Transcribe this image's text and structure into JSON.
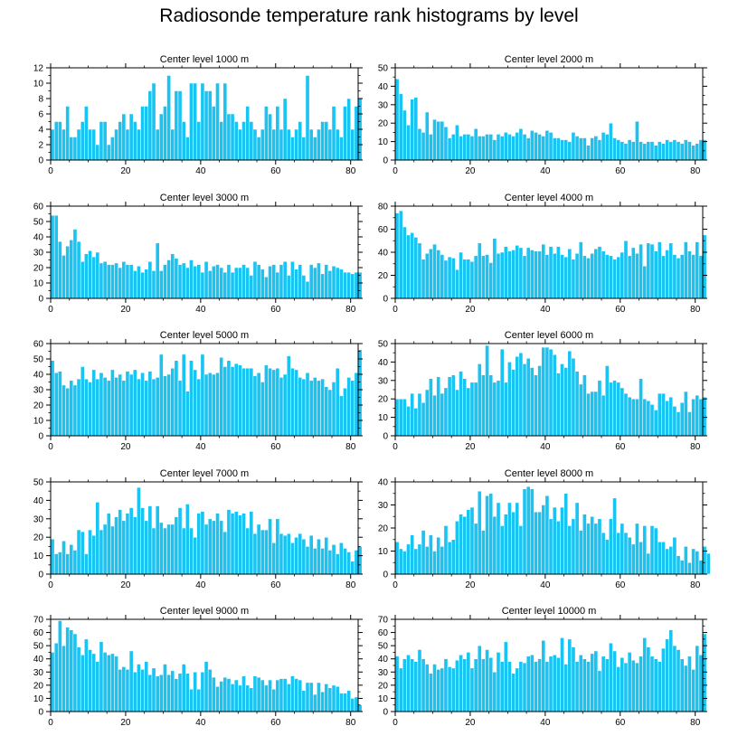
{
  "chart_data": {
    "type": "bar",
    "title": "Radiosonde temperature rank histograms by level",
    "bar_color": "#19c4f2",
    "bar_edge_color": "#ffffff",
    "x_ticks": [
      0,
      20,
      40,
      60,
      80
    ],
    "xlim": [
      0,
      82
    ],
    "panels": [
      {
        "title": "Center level 1000 m",
        "ylim": [
          0,
          12
        ],
        "y_ticks": [
          0,
          2,
          4,
          6,
          8,
          10,
          12
        ],
        "values": [
          4,
          5,
          5,
          4,
          7,
          3,
          3,
          4,
          5,
          7,
          4,
          4,
          2,
          5,
          5,
          2,
          3,
          4,
          5,
          6,
          4,
          6,
          5,
          4,
          7,
          7,
          9,
          10,
          4,
          6,
          7,
          11,
          4,
          9,
          9,
          5,
          3,
          10,
          10,
          5,
          10,
          9,
          9,
          7,
          10,
          5,
          10,
          6,
          6,
          5,
          4,
          5,
          7,
          5,
          4,
          3,
          4,
          7,
          6,
          4,
          7,
          4,
          8,
          4,
          3,
          4,
          5,
          3,
          11,
          4,
          3,
          4,
          5,
          5,
          4,
          7,
          4,
          3,
          7,
          8,
          4,
          7,
          8
        ]
      },
      {
        "title": "Center level 2000 m",
        "ylim": [
          0,
          50
        ],
        "y_ticks": [
          0,
          10,
          20,
          30,
          40,
          50
        ],
        "values": [
          44,
          36,
          27,
          19,
          33,
          34,
          17,
          15,
          26,
          14,
          22,
          21,
          21,
          18,
          12,
          14,
          19,
          13,
          14,
          14,
          13,
          17,
          13,
          13,
          14,
          14,
          11,
          14,
          13,
          15,
          14,
          13,
          15,
          17,
          14,
          12,
          16,
          15,
          14,
          13,
          16,
          15,
          12,
          12,
          11,
          11,
          10,
          15,
          13,
          12,
          12,
          8,
          12,
          13,
          11,
          15,
          14,
          20,
          12,
          11,
          10,
          9,
          11,
          10,
          21,
          10,
          9,
          10,
          10,
          8,
          10,
          9,
          11,
          10,
          11,
          10,
          9,
          11,
          10,
          8,
          9,
          11,
          11
        ]
      },
      {
        "title": "Center level 3000 m",
        "ylim": [
          0,
          60
        ],
        "y_ticks": [
          0,
          10,
          20,
          30,
          40,
          50,
          60
        ],
        "values": [
          54,
          54,
          37,
          28,
          34,
          38,
          45,
          37,
          24,
          29,
          31,
          27,
          30,
          23,
          24,
          22,
          22,
          23,
          20,
          24,
          22,
          22,
          18,
          21,
          17,
          19,
          24,
          18,
          36,
          18,
          22,
          25,
          29,
          26,
          22,
          23,
          20,
          25,
          21,
          22,
          17,
          24,
          18,
          21,
          22,
          20,
          17,
          22,
          17,
          20,
          20,
          22,
          20,
          15,
          24,
          22,
          19,
          14,
          21,
          22,
          17,
          22,
          24,
          15,
          24,
          19,
          22,
          15,
          11,
          22,
          20,
          23,
          16,
          22,
          18,
          21,
          20,
          19,
          17,
          17,
          16,
          17,
          17
        ]
      },
      {
        "title": "Center level 4000 m",
        "ylim": [
          0,
          80
        ],
        "y_ticks": [
          0,
          20,
          40,
          60,
          80
        ],
        "values": [
          74,
          76,
          62,
          55,
          57,
          53,
          48,
          34,
          39,
          43,
          47,
          42,
          38,
          33,
          36,
          35,
          25,
          40,
          34,
          34,
          32,
          37,
          48,
          37,
          38,
          31,
          52,
          39,
          40,
          45,
          41,
          42,
          46,
          44,
          37,
          44,
          42,
          41,
          41,
          47,
          38,
          45,
          39,
          45,
          38,
          36,
          43,
          34,
          39,
          49,
          37,
          35,
          39,
          43,
          45,
          41,
          38,
          37,
          34,
          36,
          40,
          50,
          37,
          44,
          39,
          47,
          28,
          48,
          47,
          41,
          49,
          37,
          42,
          48,
          38,
          35,
          38,
          49,
          41,
          38,
          49,
          37,
          55
        ]
      },
      {
        "title": "Center level 5000 m",
        "ylim": [
          0,
          60
        ],
        "y_ticks": [
          0,
          10,
          20,
          30,
          40,
          50,
          60
        ],
        "values": [
          49,
          41,
          42,
          33,
          31,
          36,
          33,
          37,
          45,
          37,
          35,
          43,
          37,
          41,
          38,
          36,
          43,
          38,
          40,
          36,
          42,
          40,
          43,
          37,
          41,
          36,
          42,
          37,
          38,
          53,
          39,
          40,
          44,
          49,
          36,
          53,
          29,
          49,
          43,
          37,
          53,
          40,
          41,
          40,
          41,
          51,
          45,
          49,
          45,
          47,
          46,
          44,
          44,
          44,
          39,
          41,
          35,
          46,
          44,
          43,
          44,
          38,
          40,
          52,
          44,
          43,
          38,
          37,
          41,
          36,
          38,
          36,
          37,
          32,
          30,
          35,
          44,
          26,
          31,
          38,
          36,
          41,
          56
        ]
      },
      {
        "title": "Center level 6000 m",
        "ylim": [
          0,
          50
        ],
        "y_ticks": [
          0,
          10,
          20,
          30,
          40,
          50
        ],
        "values": [
          20,
          20,
          20,
          16,
          23,
          15,
          23,
          18,
          25,
          31,
          22,
          32,
          23,
          26,
          32,
          33,
          25,
          35,
          31,
          26,
          29,
          29,
          39,
          33,
          49,
          33,
          29,
          30,
          47,
          29,
          40,
          36,
          43,
          45,
          39,
          42,
          37,
          33,
          38,
          48,
          48,
          47,
          44,
          34,
          39,
          37,
          46,
          42,
          35,
          28,
          33,
          23,
          24,
          24,
          30,
          22,
          38,
          29,
          30,
          29,
          26,
          23,
          21,
          20,
          20,
          31,
          20,
          19,
          17,
          14,
          23,
          23,
          19,
          21,
          16,
          13,
          18,
          24,
          13,
          20,
          22,
          20,
          21
        ]
      },
      {
        "title": "Center level 7000 m",
        "ylim": [
          0,
          50
        ],
        "y_ticks": [
          0,
          10,
          20,
          30,
          40,
          50
        ],
        "values": [
          19,
          11,
          12,
          18,
          11,
          16,
          13,
          24,
          23,
          11,
          24,
          21,
          39,
          24,
          27,
          33,
          26,
          31,
          35,
          29,
          33,
          36,
          31,
          47,
          36,
          29,
          37,
          25,
          37,
          28,
          25,
          27,
          27,
          31,
          36,
          25,
          38,
          25,
          20,
          33,
          34,
          27,
          30,
          29,
          33,
          29,
          23,
          35,
          33,
          34,
          32,
          33,
          25,
          34,
          22,
          27,
          24,
          24,
          30,
          17,
          30,
          22,
          21,
          22,
          17,
          20,
          22,
          19,
          15,
          21,
          14,
          19,
          14,
          20,
          13,
          16,
          11,
          17,
          14,
          12,
          7,
          13,
          15
        ]
      },
      {
        "title": "Center level 8000 m",
        "ylim": [
          0,
          40
        ],
        "y_ticks": [
          0,
          10,
          20,
          30,
          40
        ],
        "values": [
          14,
          11,
          10,
          13,
          17,
          11,
          13,
          19,
          12,
          17,
          10,
          16,
          12,
          21,
          14,
          15,
          23,
          26,
          25,
          28,
          29,
          22,
          36,
          19,
          34,
          35,
          25,
          31,
          21,
          26,
          31,
          27,
          31,
          21,
          37,
          38,
          37,
          27,
          27,
          30,
          34,
          24,
          29,
          23,
          29,
          35,
          21,
          24,
          31,
          19,
          26,
          22,
          25,
          22,
          24,
          18,
          15,
          24,
          33,
          18,
          22,
          18,
          16,
          13,
          22,
          14,
          21,
          9,
          21,
          20,
          14,
          14,
          11,
          12,
          16,
          8,
          6,
          12,
          5,
          11,
          10,
          6,
          12,
          9
        ]
      },
      {
        "title": "Center level 9000 m",
        "ylim": [
          0,
          70
        ],
        "y_ticks": [
          0,
          10,
          20,
          30,
          40,
          50,
          60,
          70
        ],
        "values": [
          45,
          52,
          69,
          50,
          64,
          62,
          59,
          49,
          43,
          55,
          47,
          44,
          38,
          53,
          45,
          43,
          44,
          42,
          32,
          34,
          32,
          46,
          30,
          36,
          32,
          38,
          28,
          33,
          27,
          28,
          36,
          28,
          31,
          25,
          29,
          36,
          29,
          17,
          30,
          17,
          30,
          38,
          32,
          26,
          19,
          23,
          26,
          25,
          21,
          24,
          20,
          27,
          20,
          18,
          27,
          26,
          24,
          20,
          24,
          17,
          24,
          25,
          25,
          21,
          27,
          25,
          24,
          16,
          22,
          22,
          13,
          22,
          15,
          21,
          18,
          20,
          19,
          14,
          14,
          16,
          10,
          11,
          5
        ]
      },
      {
        "title": "Center level 10000 m",
        "ylim": [
          0,
          70
        ],
        "y_ticks": [
          0,
          10,
          20,
          30,
          40,
          50,
          60,
          70
        ],
        "values": [
          42,
          33,
          40,
          43,
          40,
          38,
          47,
          40,
          36,
          29,
          36,
          32,
          33,
          40,
          34,
          33,
          39,
          43,
          40,
          45,
          33,
          40,
          50,
          40,
          47,
          41,
          30,
          45,
          38,
          53,
          38,
          29,
          33,
          38,
          37,
          42,
          43,
          38,
          40,
          54,
          38,
          42,
          43,
          41,
          56,
          36,
          55,
          49,
          38,
          43,
          40,
          38,
          44,
          46,
          31,
          42,
          40,
          52,
          46,
          34,
          41,
          37,
          45,
          39,
          37,
          42,
          56,
          49,
          42,
          40,
          38,
          48,
          55,
          62,
          50,
          47,
          40,
          35,
          42,
          32,
          50,
          43,
          59
        ]
      }
    ]
  }
}
